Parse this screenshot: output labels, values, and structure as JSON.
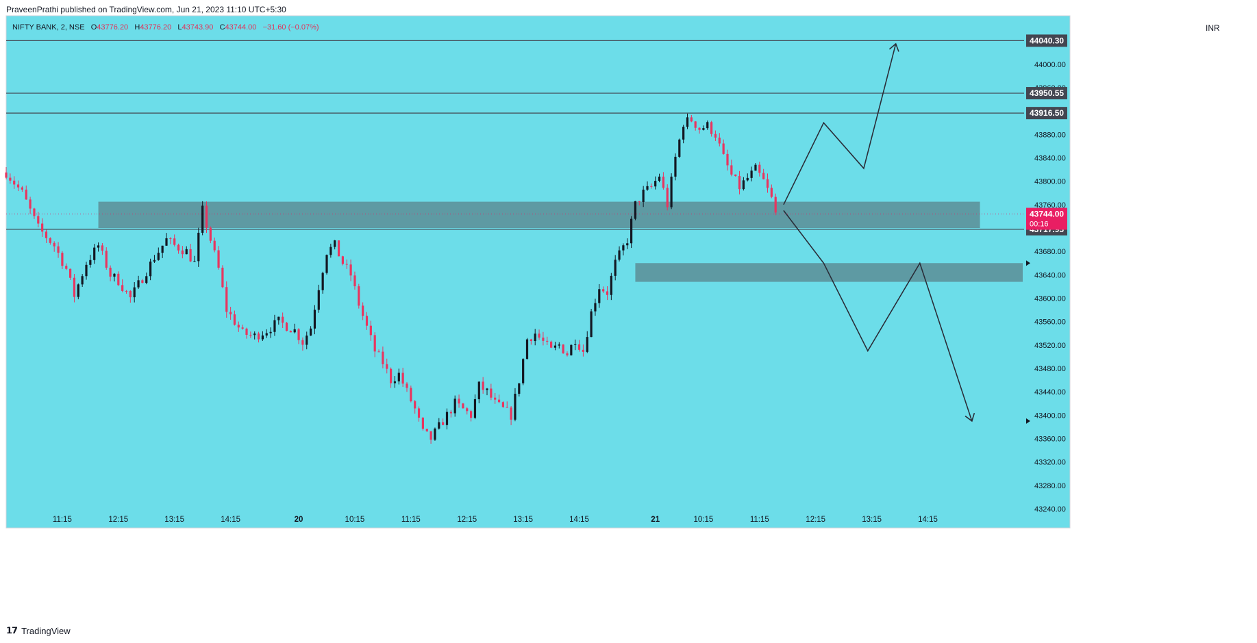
{
  "publisher": "PraveenPrathi published on TradingView.com, Jun 21, 2023 11:10 UTC+5:30",
  "legend": {
    "symbol": "NIFTY BANK, 2, NSE",
    "o_label": "O",
    "o": "43776.20",
    "h_label": "H",
    "h": "43776.20",
    "l_label": "L",
    "l": "43743.90",
    "c_label": "C",
    "c": "43744.00",
    "change": "−31.60 (−0.07%)"
  },
  "currency": "INR",
  "footer_brand": "TradingView",
  "colors": {
    "background": "#6cdde9",
    "up": "#131722",
    "down": "#e8355f",
    "zone": "#5c8e97",
    "last_price": "#e91e63"
  },
  "chart_data": {
    "type": "candlestick",
    "x_tick_labels": [
      "11:15",
      "12:15",
      "13:15",
      "14:15",
      "20",
      "10:15",
      "11:15",
      "12:15",
      "13:15",
      "14:15",
      "21",
      "10:15",
      "11:15",
      "12:15",
      "13:15",
      "14:15"
    ],
    "y_tick_labels": [
      "44000.00",
      "43960.00",
      "43880.00",
      "43840.00",
      "43800.00",
      "43760.00",
      "43680.00",
      "43640.00",
      "43600.00",
      "43560.00",
      "43520.00",
      "43480.00",
      "43440.00",
      "43400.00",
      "43360.00",
      "43320.00",
      "43280.00",
      "43240.00"
    ],
    "ylim": [
      43240,
      44060
    ],
    "close_path": [
      [
        0,
        43815
      ],
      [
        4,
        43780
      ],
      [
        8,
        43720
      ],
      [
        12,
        43690
      ],
      [
        15,
        43650
      ],
      [
        17,
        43605
      ],
      [
        20,
        43660
      ],
      [
        23,
        43690
      ],
      [
        26,
        43640
      ],
      [
        28,
        43630
      ],
      [
        31,
        43600
      ],
      [
        34,
        43635
      ],
      [
        37,
        43670
      ],
      [
        40,
        43700
      ],
      [
        42,
        43690
      ],
      [
        45,
        43680
      ],
      [
        47,
        43660
      ],
      [
        49,
        43750
      ],
      [
        51,
        43700
      ],
      [
        53,
        43650
      ],
      [
        55,
        43580
      ],
      [
        57,
        43560
      ],
      [
        59,
        43540
      ],
      [
        62,
        43535
      ],
      [
        65,
        43545
      ],
      [
        68,
        43560
      ],
      [
        72,
        43545
      ],
      [
        74,
        43525
      ],
      [
        76,
        43550
      ],
      [
        78,
        43620
      ],
      [
        80,
        43680
      ],
      [
        82,
        43690
      ],
      [
        84,
        43660
      ],
      [
        86,
        43640
      ],
      [
        88,
        43590
      ],
      [
        90,
        43550
      ],
      [
        92,
        43510
      ],
      [
        94,
        43490
      ],
      [
        96,
        43460
      ],
      [
        98,
        43470
      ],
      [
        100,
        43440
      ],
      [
        102,
        43410
      ],
      [
        104,
        43370
      ],
      [
        106,
        43360
      ],
      [
        108,
        43380
      ],
      [
        110,
        43400
      ],
      [
        112,
        43420
      ],
      [
        114,
        43410
      ],
      [
        116,
        43400
      ],
      [
        118,
        43450
      ],
      [
        120,
        43440
      ],
      [
        122,
        43420
      ],
      [
        124,
        43410
      ],
      [
        126,
        43400
      ],
      [
        128,
        43460
      ],
      [
        130,
        43530
      ],
      [
        132,
        43540
      ],
      [
        134,
        43525
      ],
      [
        136,
        43510
      ],
      [
        138,
        43520
      ],
      [
        140,
        43505
      ],
      [
        142,
        43530
      ],
      [
        144,
        43510
      ],
      [
        146,
        43575
      ],
      [
        148,
        43620
      ],
      [
        150,
        43610
      ],
      [
        152,
        43660
      ],
      [
        155,
        43700
      ],
      [
        157,
        43760
      ],
      [
        159,
        43780
      ],
      [
        161,
        43790
      ],
      [
        163,
        43810
      ],
      [
        165,
        43760
      ],
      [
        167,
        43840
      ],
      [
        169,
        43900
      ],
      [
        171,
        43905
      ],
      [
        173,
        43890
      ],
      [
        175,
        43895
      ],
      [
        177,
        43880
      ],
      [
        179,
        43840
      ],
      [
        181,
        43810
      ],
      [
        183,
        43790
      ],
      [
        185,
        43805
      ],
      [
        187,
        43820
      ],
      [
        189,
        43800
      ],
      [
        191,
        43770
      ],
      [
        192,
        43744
      ]
    ],
    "horizontal_lines": [
      44040.3,
      43950.55,
      43916.5,
      43717.95
    ],
    "price_labels": [
      "44040.30",
      "43950.55",
      "43916.50",
      "43744.00",
      "43717.95"
    ],
    "last_price": "43744.00",
    "last_price_countdown": "00:16",
    "zones": [
      [
        43720,
        43765
      ],
      [
        43628,
        43660
      ]
    ],
    "projection_up": [
      [
        43760,
        43900
      ],
      [
        43900,
        43822
      ],
      [
        43822,
        44035
      ]
    ],
    "projection_down": [
      [
        43750,
        43660
      ],
      [
        43660,
        43510
      ],
      [
        43510,
        43660
      ],
      [
        43660,
        43390
      ]
    ]
  }
}
